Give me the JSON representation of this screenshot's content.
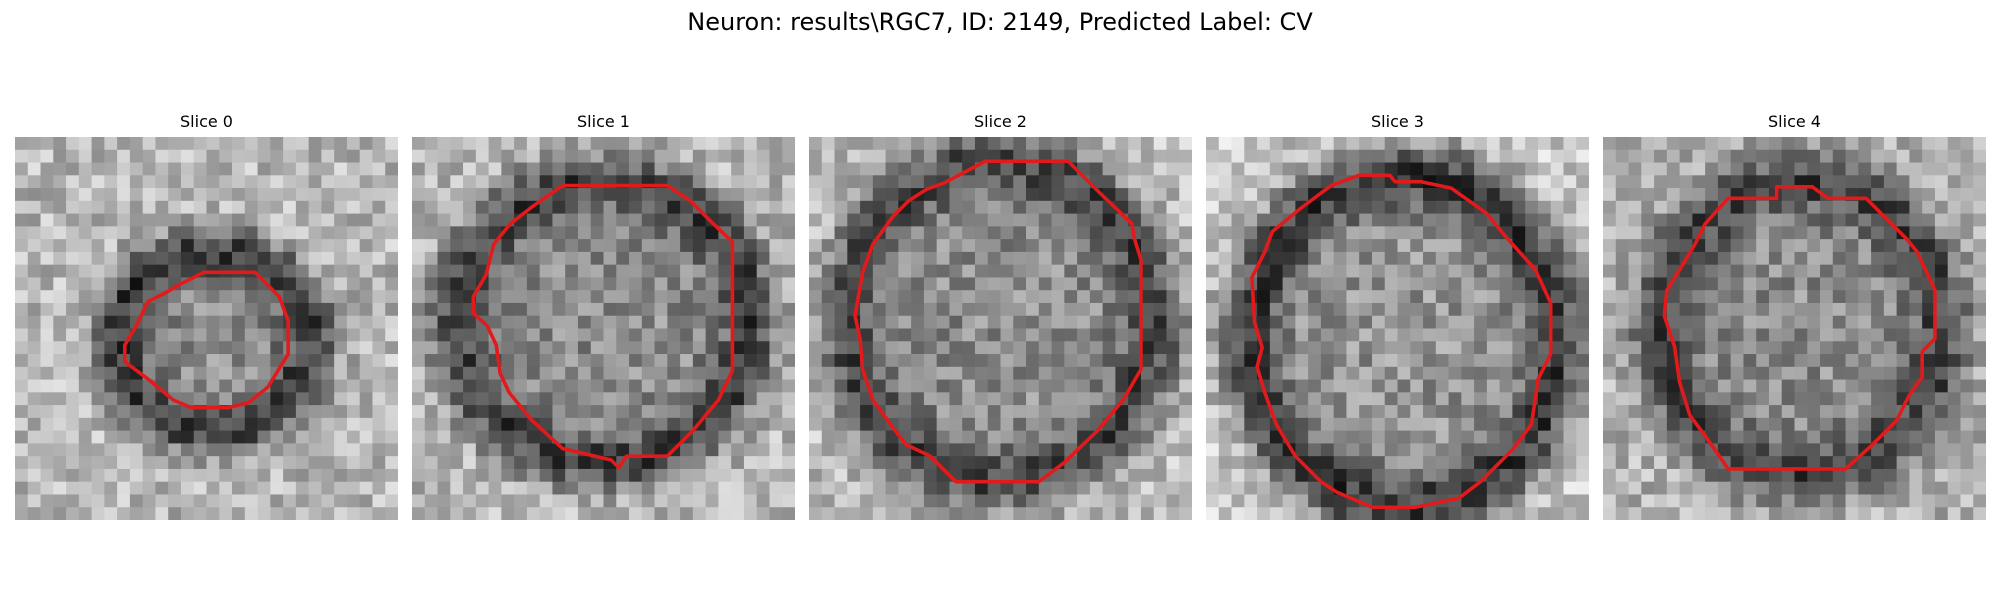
{
  "figure": {
    "title": "Neuron: results\\RGC7, ID: 2149, Predicted Label: CV"
  },
  "panels": [
    {
      "title": "Slice 0",
      "contour_color": "#e31a1c"
    },
    {
      "title": "Slice 1",
      "contour_color": "#e31a1c"
    },
    {
      "title": "Slice 2",
      "contour_color": "#e31a1c"
    },
    {
      "title": "Slice 3",
      "contour_color": "#e31a1c"
    },
    {
      "title": "Slice 4",
      "contour_color": "#e31a1c"
    }
  ],
  "colormap": "gray"
}
